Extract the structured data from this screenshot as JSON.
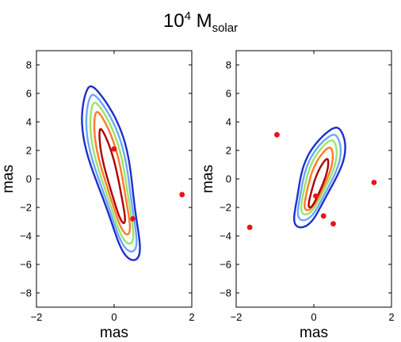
{
  "title": {
    "base": "10",
    "exponent": "4",
    "mass": "M",
    "subscript": "solar"
  },
  "chart_data": [
    {
      "type": "contour",
      "xlabel": "mas",
      "ylabel": "mas",
      "xlim": [
        -2,
        2
      ],
      "ylim": [
        -9,
        9
      ],
      "xticks": [
        -2,
        0,
        2
      ],
      "yticks": [
        -8,
        -6,
        -4,
        -2,
        0,
        2,
        4,
        6,
        8
      ],
      "grid": false,
      "contour_colors": [
        "#1f2fcc",
        "#6aa8ff",
        "#9ee36a",
        "#ff7a2a",
        "#b00000"
      ],
      "points": [
        {
          "x": 0.0,
          "y": 2.1
        },
        {
          "x": 0.48,
          "y": -2.8
        },
        {
          "x": 1.75,
          "y": -1.1
        }
      ]
    },
    {
      "type": "contour",
      "xlabel": "mas",
      "ylabel": "mas",
      "xlim": [
        -2,
        2
      ],
      "ylim": [
        -9,
        9
      ],
      "xticks": [
        -2,
        0,
        2
      ],
      "yticks": [
        -8,
        -6,
        -4,
        -2,
        0,
        2,
        4,
        6,
        8
      ],
      "grid": false,
      "contour_colors": [
        "#1f2fcc",
        "#6aa8ff",
        "#9ee36a",
        "#ff7a2a",
        "#b00000"
      ],
      "points": [
        {
          "x": -0.95,
          "y": 3.1
        },
        {
          "x": -1.65,
          "y": -3.4
        },
        {
          "x": 1.55,
          "y": -0.25
        },
        {
          "x": 0.05,
          "y": -1.2
        },
        {
          "x": 0.25,
          "y": -2.6
        },
        {
          "x": 0.5,
          "y": -3.15
        }
      ]
    }
  ]
}
